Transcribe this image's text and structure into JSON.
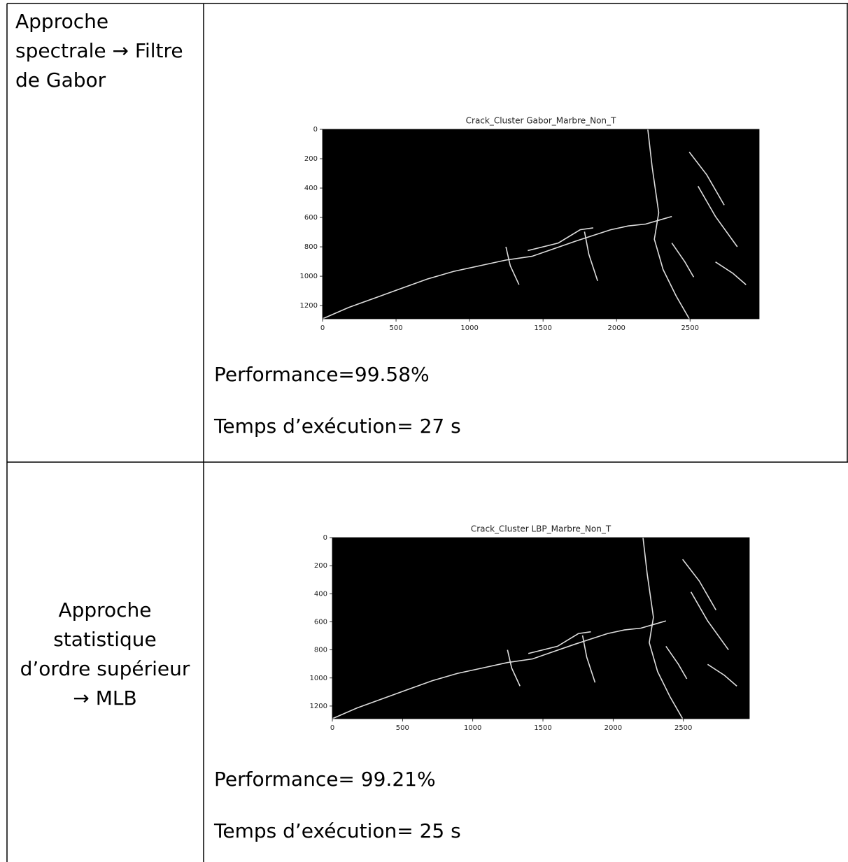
{
  "rows": [
    {
      "label": [
        "Approche",
        "spectrale → Filtre",
        "de Gabor"
      ],
      "plot": {
        "title": "Crack_Cluster Gabor_Marbre_Non_T",
        "xlim": [
          0,
          2970
        ],
        "ylim": [
          0,
          1290
        ],
        "xticks": [
          0,
          500,
          1000,
          1500,
          2000,
          2500
        ],
        "yticks": [
          0,
          200,
          400,
          600,
          800,
          1000,
          1200
        ]
      },
      "performance": "Performance=99.58%",
      "time": "Temps d’exécution= 27 s"
    },
    {
      "label": [
        "Approche",
        "statistique",
        "d’ordre supérieur",
        "→  MLB"
      ],
      "plot": {
        "title": "Crack_Cluster LBP_Marbre_Non_T",
        "xlim": [
          0,
          2970
        ],
        "ylim": [
          0,
          1290
        ],
        "xticks": [
          0,
          500,
          1000,
          1500,
          2000,
          2500
        ],
        "yticks": [
          0,
          200,
          400,
          600,
          800,
          1000,
          1200
        ]
      },
      "performance": "Performance= 99.21%",
      "time": "Temps d’exécution= 25 s"
    }
  ]
}
